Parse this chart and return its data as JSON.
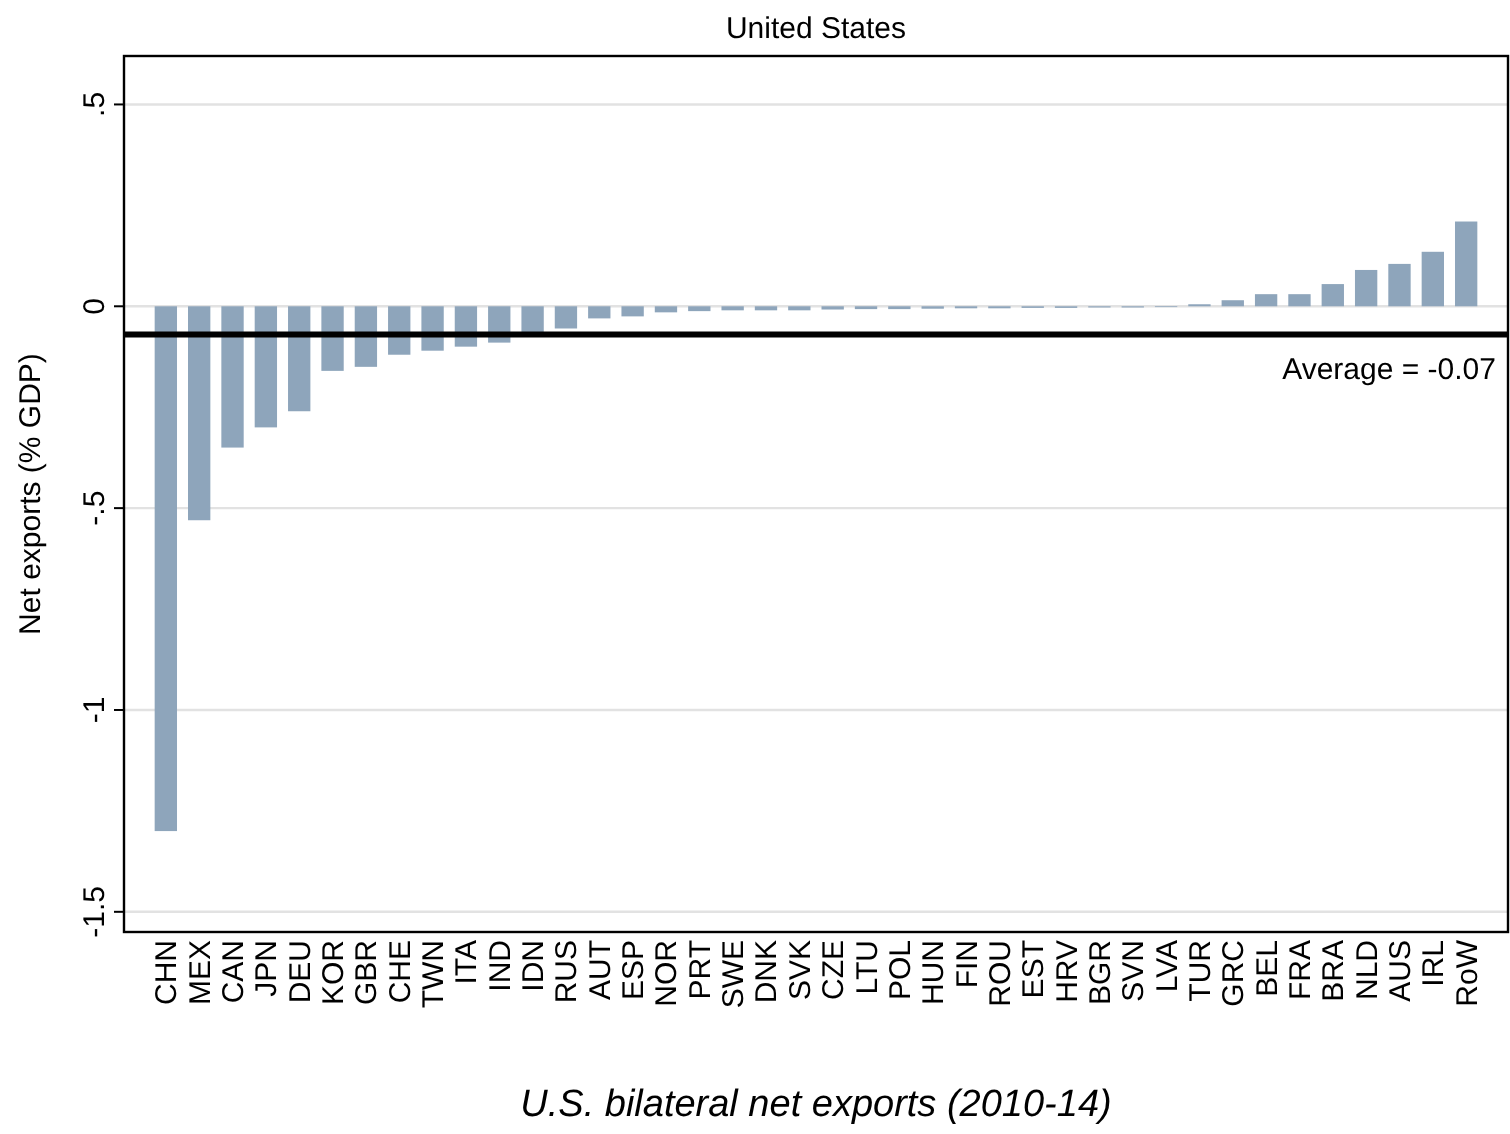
{
  "chart_data": {
    "type": "bar",
    "title": "United States",
    "xlabel": "U.S. bilateral net exports (2010-14)",
    "ylabel": "Net exports (% GDP)",
    "categories": [
      "CHN",
      "MEX",
      "CAN",
      "JPN",
      "DEU",
      "KOR",
      "GBR",
      "CHE",
      "TWN",
      "ITA",
      "IND",
      "IDN",
      "RUS",
      "AUT",
      "ESP",
      "NOR",
      "PRT",
      "SWE",
      "DNK",
      "SVK",
      "CZE",
      "LTU",
      "POL",
      "HUN",
      "FIN",
      "ROU",
      "EST",
      "HRV",
      "BGR",
      "SVN",
      "LVA",
      "TUR",
      "GRC",
      "BEL",
      "FRA",
      "BRA",
      "NLD",
      "AUS",
      "IRL",
      "RoW"
    ],
    "values": [
      -1.3,
      -0.53,
      -0.35,
      -0.3,
      -0.26,
      -0.16,
      -0.15,
      -0.12,
      -0.11,
      -0.1,
      -0.09,
      -0.075,
      -0.055,
      -0.03,
      -0.025,
      -0.015,
      -0.012,
      -0.01,
      -0.01,
      -0.01,
      -0.008,
      -0.007,
      -0.007,
      -0.006,
      -0.005,
      -0.005,
      -0.004,
      -0.004,
      -0.003,
      -0.003,
      -0.002,
      0.005,
      0.015,
      0.03,
      0.03,
      0.055,
      0.09,
      0.105,
      0.135,
      0.21
    ],
    "color": "#8ea5bb",
    "ylim": [
      -1.55,
      0.62
    ],
    "yticks": [
      {
        "value": 0.5,
        "label": ".5"
      },
      0,
      {
        "value": -0.5,
        "label": "-.5"
      },
      -1,
      {
        "value": -1.5,
        "label": "-1.5"
      }
    ],
    "grid": "y",
    "ref_lines": [
      {
        "axis": "y",
        "value": -0.07,
        "label": "Average = -0.07",
        "color": "#000000"
      }
    ]
  }
}
